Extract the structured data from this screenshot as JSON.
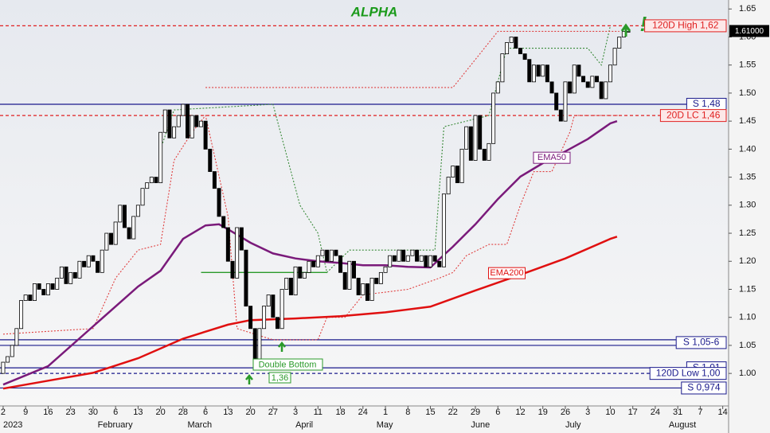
{
  "chart_data": {
    "type": "candlestick",
    "title": "ALPHA",
    "xlim": [
      -0.7,
      161.3
    ],
    "ylim": [
      0.942,
      1.666
    ],
    "xticks": [
      {
        "value": 0,
        "label": "2"
      },
      {
        "value": 5,
        "label": "9"
      },
      {
        "value": 10,
        "label": "16"
      },
      {
        "value": 15,
        "label": "23"
      },
      {
        "value": 20,
        "label": "30"
      },
      {
        "value": 25,
        "label": "6"
      },
      {
        "value": 30,
        "label": "13"
      },
      {
        "value": 35,
        "label": "20"
      },
      {
        "value": 40,
        "label": "28"
      },
      {
        "value": 45,
        "label": "6"
      },
      {
        "value": 50,
        "label": "13"
      },
      {
        "value": 55,
        "label": "20"
      },
      {
        "value": 60,
        "label": "27"
      },
      {
        "value": 65,
        "label": "3"
      },
      {
        "value": 70,
        "label": "11"
      },
      {
        "value": 75,
        "label": "18"
      },
      {
        "value": 80,
        "label": "24"
      },
      {
        "value": 85,
        "label": "1"
      },
      {
        "value": 90,
        "label": "8"
      },
      {
        "value": 95,
        "label": "15"
      },
      {
        "value": 100,
        "label": "22"
      },
      {
        "value": 105,
        "label": "29"
      },
      {
        "value": 110,
        "label": "6"
      },
      {
        "value": 115,
        "label": "12"
      },
      {
        "value": 120,
        "label": "19"
      },
      {
        "value": 125,
        "label": "26"
      },
      {
        "value": 130,
        "label": "3"
      },
      {
        "value": 135,
        "label": "10"
      },
      {
        "value": 140,
        "label": "17"
      },
      {
        "value": 145,
        "label": "24"
      },
      {
        "value": 150,
        "label": "31"
      },
      {
        "value": 155,
        "label": "7"
      },
      {
        "value": 160,
        "label": "14"
      }
    ],
    "month_labels": [
      {
        "value": 0,
        "label": "2023"
      },
      {
        "value": 21,
        "label": "February"
      },
      {
        "value": 41,
        "label": "March"
      },
      {
        "value": 65,
        "label": "April"
      },
      {
        "value": 83,
        "label": "May"
      },
      {
        "value": 104,
        "label": "June"
      },
      {
        "value": 125,
        "label": "July"
      },
      {
        "value": 148,
        "label": "August"
      }
    ],
    "yticks": [
      {
        "value": 1.0,
        "label": "1.00"
      },
      1.05,
      {
        "value": 1.1,
        "label": "1.10"
      },
      1.15,
      {
        "value": 1.2,
        "label": "1.20"
      },
      1.25,
      {
        "value": 1.3,
        "label": "1.30"
      },
      1.35,
      {
        "value": 1.4,
        "label": "1.40"
      },
      1.45,
      {
        "value": 1.5,
        "label": "1.50"
      },
      1.55,
      {
        "value": 1.6,
        "label": "1.60"
      },
      1.65
    ],
    "candles": {
      "open": [
        1.0,
        1.02,
        1.03,
        1.05,
        1.08,
        1.13,
        1.14,
        1.13,
        1.16,
        1.15,
        1.14,
        1.16,
        1.15,
        1.17,
        1.19,
        1.16,
        1.18,
        1.17,
        1.2,
        1.19,
        1.21,
        1.2,
        1.18,
        1.22,
        1.25,
        1.23,
        1.27,
        1.3,
        1.26,
        1.24,
        1.28,
        1.3,
        1.33,
        1.34,
        1.35,
        1.34,
        1.43,
        1.47,
        1.42,
        1.44,
        1.46,
        1.48,
        1.42,
        1.46,
        1.44,
        1.45,
        1.4,
        1.36,
        1.33,
        1.28,
        1.26,
        1.2,
        1.17,
        1.26,
        1.22,
        1.12,
        1.08,
        1.02,
        1.08,
        1.12,
        1.14,
        1.1,
        1.08,
        1.15,
        1.17,
        1.14,
        1.19,
        1.17,
        1.18,
        1.2,
        1.19,
        1.21,
        1.22,
        1.2,
        1.22,
        1.21,
        1.18,
        1.15,
        1.2,
        1.17,
        1.14,
        1.16,
        1.13,
        1.17,
        1.16,
        1.18,
        1.19,
        1.21,
        1.2,
        1.22,
        1.2,
        1.21,
        1.22,
        1.2,
        1.21,
        1.19,
        1.21,
        1.2,
        1.19,
        1.32,
        1.35,
        1.37,
        1.34,
        1.4,
        1.44,
        1.38,
        1.46,
        1.4,
        1.38,
        1.41,
        1.5,
        1.52,
        1.57,
        1.59,
        1.6,
        1.58,
        1.57,
        1.56,
        1.52,
        1.55,
        1.53,
        1.55,
        1.52,
        1.5,
        1.47,
        1.45,
        1.52,
        1.5,
        1.55,
        1.53,
        1.52,
        1.51,
        1.53,
        1.52,
        1.49,
        1.52,
        1.55,
        1.58,
        1.6,
        1.61
      ],
      "close": [
        1.02,
        1.03,
        1.05,
        1.08,
        1.13,
        1.14,
        1.13,
        1.16,
        1.15,
        1.14,
        1.16,
        1.15,
        1.17,
        1.19,
        1.16,
        1.18,
        1.17,
        1.2,
        1.19,
        1.21,
        1.2,
        1.18,
        1.22,
        1.25,
        1.23,
        1.27,
        1.3,
        1.26,
        1.24,
        1.28,
        1.3,
        1.33,
        1.34,
        1.35,
        1.34,
        1.43,
        1.47,
        1.42,
        1.44,
        1.46,
        1.48,
        1.42,
        1.46,
        1.44,
        1.45,
        1.4,
        1.36,
        1.33,
        1.28,
        1.26,
        1.2,
        1.17,
        1.26,
        1.22,
        1.12,
        1.08,
        1.02,
        1.08,
        1.12,
        1.14,
        1.1,
        1.08,
        1.15,
        1.17,
        1.14,
        1.19,
        1.17,
        1.18,
        1.2,
        1.19,
        1.21,
        1.22,
        1.2,
        1.22,
        1.21,
        1.18,
        1.15,
        1.2,
        1.17,
        1.14,
        1.16,
        1.13,
        1.17,
        1.16,
        1.18,
        1.19,
        1.21,
        1.2,
        1.22,
        1.2,
        1.21,
        1.22,
        1.2,
        1.21,
        1.19,
        1.21,
        1.2,
        1.19,
        1.32,
        1.35,
        1.37,
        1.34,
        1.4,
        1.44,
        1.38,
        1.46,
        1.4,
        1.38,
        1.41,
        1.5,
        1.52,
        1.57,
        1.59,
        1.6,
        1.58,
        1.57,
        1.56,
        1.52,
        1.55,
        1.53,
        1.55,
        1.52,
        1.5,
        1.47,
        1.45,
        1.52,
        1.5,
        1.55,
        1.53,
        1.52,
        1.51,
        1.53,
        1.52,
        1.49,
        1.52,
        1.55,
        1.58,
        1.6,
        1.61,
        1.61
      ]
    },
    "last_price_label": "1.61000",
    "series": [
      {
        "name": "EMA50",
        "color": "#7a1a7a",
        "x": [
          0,
          10,
          20,
          30,
          35,
          40,
          45,
          48,
          50,
          55,
          60,
          65,
          70,
          75,
          80,
          85,
          90,
          95,
          100,
          105,
          110,
          115,
          120,
          125,
          130,
          135,
          136.5
        ],
        "values": [
          0.98,
          1.013,
          1.084,
          1.155,
          1.183,
          1.24,
          1.264,
          1.266,
          1.257,
          1.233,
          1.214,
          1.205,
          1.2,
          1.197,
          1.193,
          1.193,
          1.19,
          1.189,
          1.226,
          1.266,
          1.311,
          1.351,
          1.375,
          1.396,
          1.418,
          1.446,
          1.45
        ]
      },
      {
        "name": "EMA200",
        "color": "#e01010",
        "x": [
          0,
          10,
          20,
          30,
          40,
          50,
          55,
          65,
          75,
          85,
          95,
          105,
          115,
          125,
          135,
          136.5
        ],
        "values": [
          0.973,
          0.987,
          1.001,
          1.027,
          1.062,
          1.087,
          1.095,
          1.098,
          1.102,
          1.109,
          1.119,
          1.148,
          1.176,
          1.205,
          1.24,
          1.244
        ]
      }
    ],
    "dotted_lines": [
      {
        "color": "#3a8a3a",
        "x": [
          35,
          38,
          60,
          62,
          66,
          70,
          72,
          77,
          96,
          98,
          108,
          112,
          130,
          133,
          135
        ],
        "values": [
          1.4,
          1.47,
          1.48,
          1.42,
          1.3,
          1.25,
          1.18,
          1.22,
          1.22,
          1.44,
          1.46,
          1.58,
          1.58,
          1.55,
          1.62
        ]
      },
      {
        "color": "#e04040",
        "x": [
          0,
          20,
          25,
          30,
          35,
          38,
          42,
          45,
          50,
          52,
          60,
          70,
          72,
          76,
          80,
          90,
          97,
          100,
          103,
          108,
          112,
          115,
          118,
          122,
          126,
          127,
          137
        ],
        "values": [
          1.07,
          1.08,
          1.17,
          1.22,
          1.23,
          1.38,
          1.43,
          1.46,
          1.28,
          1.08,
          1.06,
          1.06,
          1.1,
          1.1,
          1.14,
          1.15,
          1.17,
          1.18,
          1.21,
          1.23,
          1.23,
          1.3,
          1.36,
          1.36,
          1.43,
          1.46,
          1.46
        ]
      },
      {
        "color": "#e04040",
        "x": [
          45,
          100,
          110,
          137
        ],
        "values": [
          1.51,
          1.51,
          1.61,
          1.61
        ]
      }
    ],
    "neckline": {
      "color": "#2a9a2a",
      "x": [
        44,
        72
      ],
      "values": [
        1.18,
        1.18
      ]
    },
    "levels": [
      {
        "label": "120D High 1,62",
        "values": [
          1.62
        ],
        "color": "#e02020",
        "dashed": true
      },
      {
        "label": "S 1,48",
        "values": [
          1.48
        ],
        "color": "#1a1a8c",
        "dashed": false
      },
      {
        "label": "20D LC 1,46",
        "values": [
          1.46
        ],
        "color": "#e02020",
        "dashed": true
      },
      {
        "label": "S 1,05-6",
        "values": [
          1.06,
          1.05
        ],
        "color": "#1a1a8c",
        "dashed": false
      },
      {
        "label": "S 1,01",
        "values": [
          1.01
        ],
        "color": "#1a1a8c",
        "dashed": false
      },
      {
        "label": "120D Low 1,00",
        "values": [
          1.0
        ],
        "color": "#1a1a8c",
        "dashed": true
      },
      {
        "label": "S 0,974",
        "values": [
          0.974
        ],
        "color": "#1a1a8c",
        "dashed": false
      }
    ],
    "annotations": {
      "double_bottom": "Double Bottom",
      "low_value": "1,36",
      "exclaim": "!"
    }
  }
}
